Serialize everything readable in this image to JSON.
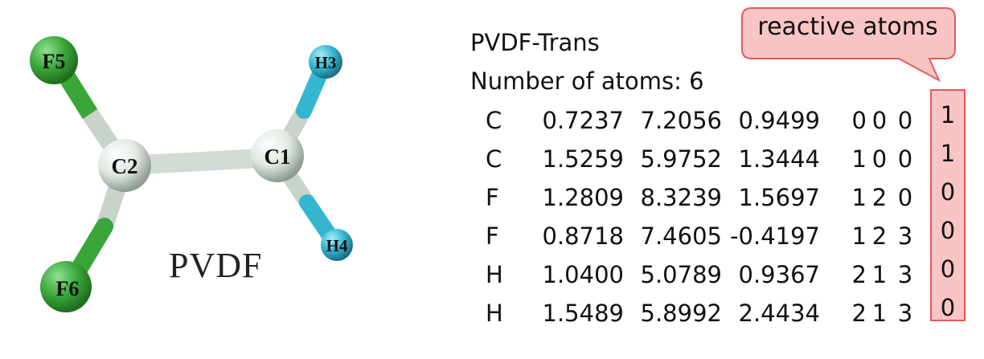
{
  "molecule": {
    "name": "PVDF",
    "atoms": [
      {
        "id": "F5",
        "label": "F5",
        "element": "F",
        "color": "#3aa63a"
      },
      {
        "id": "F6",
        "label": "F6",
        "element": "F",
        "color": "#3aa63a"
      },
      {
        "id": "C2",
        "label": "C2",
        "element": "C",
        "color": "#dfe8e0"
      },
      {
        "id": "C1",
        "label": "C1",
        "element": "C",
        "color": "#dfe8e0"
      },
      {
        "id": "H3",
        "label": "H3",
        "element": "H",
        "color": "#35b6d0"
      },
      {
        "id": "H4",
        "label": "H4",
        "element": "H",
        "color": "#35b6d0"
      }
    ]
  },
  "info": {
    "title": "PVDF-Trans",
    "count_line": "Number of atoms: 6"
  },
  "table": {
    "rows": [
      {
        "element": "C",
        "x": "0.7237",
        "y": "7.2056",
        "z": "0.9499",
        "n1": "0",
        "n2": "0",
        "n3": "0",
        "reactive": "1"
      },
      {
        "element": "C",
        "x": "1.5259",
        "y": "5.9752",
        "z": "1.3444",
        "n1": "1",
        "n2": "0",
        "n3": "0",
        "reactive": "1"
      },
      {
        "element": "F",
        "x": "1.2809",
        "y": "8.3239",
        "z": "1.5697",
        "n1": "1",
        "n2": "2",
        "n3": "0",
        "reactive": "0"
      },
      {
        "element": "F",
        "x": "0.8718",
        "y": "7.4605",
        "z": "-0.4197",
        "n1": "1",
        "n2": "2",
        "n3": "3",
        "reactive": "0"
      },
      {
        "element": "H",
        "x": "1.0400",
        "y": "5.0789",
        "z": "0.9367",
        "n1": "2",
        "n2": "1",
        "n3": "3",
        "reactive": "0"
      },
      {
        "element": "H",
        "x": "1.5489",
        "y": "5.8992",
        "z": "2.4434",
        "n1": "2",
        "n2": "1",
        "n3": "3",
        "reactive": "0"
      }
    ]
  },
  "callout": {
    "text": "reactive atoms",
    "fill_color": "#f9c4c4",
    "border_color": "#e65a5a"
  }
}
